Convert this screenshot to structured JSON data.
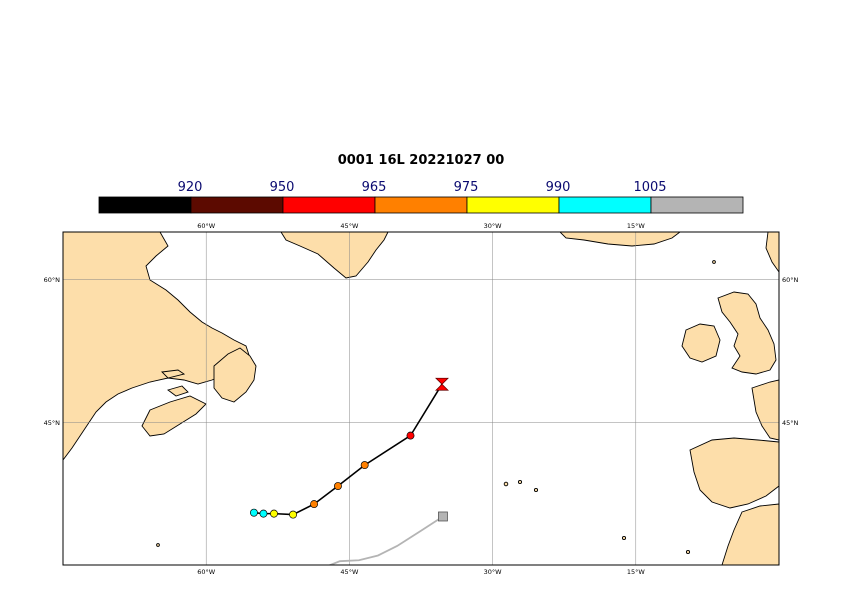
{
  "title": "0001 16L 20221027 00",
  "legend": {
    "thresholds": [
      "920",
      "950",
      "965",
      "975",
      "990",
      "1005"
    ],
    "colors": [
      "#000000",
      "#5c0a00",
      "#ff0000",
      "#ff8000",
      "#ffff00",
      "#00ffff",
      "#b4b4b4"
    ]
  },
  "axes": {
    "lon_labels": [
      "60°W",
      "45°W",
      "30°W",
      "15°W"
    ],
    "lat_labels": [
      "60°N",
      "45°N"
    ],
    "lon_values": [
      -60,
      -45,
      -30,
      -15
    ],
    "lat_values": [
      60,
      45
    ]
  },
  "map": {
    "land_color": "#fddeaa",
    "ocean_color": "#ffffff",
    "extent": {
      "lon": [
        -75,
        0
      ],
      "lat": [
        30,
        65
      ]
    }
  },
  "track": {
    "points": [
      {
        "lon": -35.3,
        "lat": 49.0,
        "color": "#ff0000",
        "marker": "hourglass"
      },
      {
        "lon": -38.6,
        "lat": 43.6,
        "color": "#ff0000"
      },
      {
        "lon": -43.4,
        "lat": 40.5,
        "color": "#ff8000"
      },
      {
        "lon": -46.2,
        "lat": 38.3,
        "color": "#ff8000"
      },
      {
        "lon": -48.7,
        "lat": 36.4,
        "color": "#ff8000"
      },
      {
        "lon": -50.9,
        "lat": 35.3,
        "color": "#ffff00"
      },
      {
        "lon": -52.9,
        "lat": 35.4,
        "color": "#ffff00"
      },
      {
        "lon": -54.0,
        "lat": 35.4,
        "color": "#00ffff"
      },
      {
        "lon": -55.0,
        "lat": 35.5,
        "color": "#00ffff"
      }
    ],
    "secondary": [
      {
        "lon": -35.2,
        "lat": 35.1,
        "color": "#b4b4b4",
        "marker": "square"
      },
      {
        "lon": -37.5,
        "lat": 33.6
      },
      {
        "lon": -40.0,
        "lat": 32.0
      },
      {
        "lon": -42.0,
        "lat": 31.0
      },
      {
        "lon": -44.0,
        "lat": 30.5
      },
      {
        "lon": -46.0,
        "lat": 30.4
      },
      {
        "lon": -47.0,
        "lat": 30.0
      },
      {
        "lon": -48.0,
        "lat": 29.6
      }
    ]
  }
}
